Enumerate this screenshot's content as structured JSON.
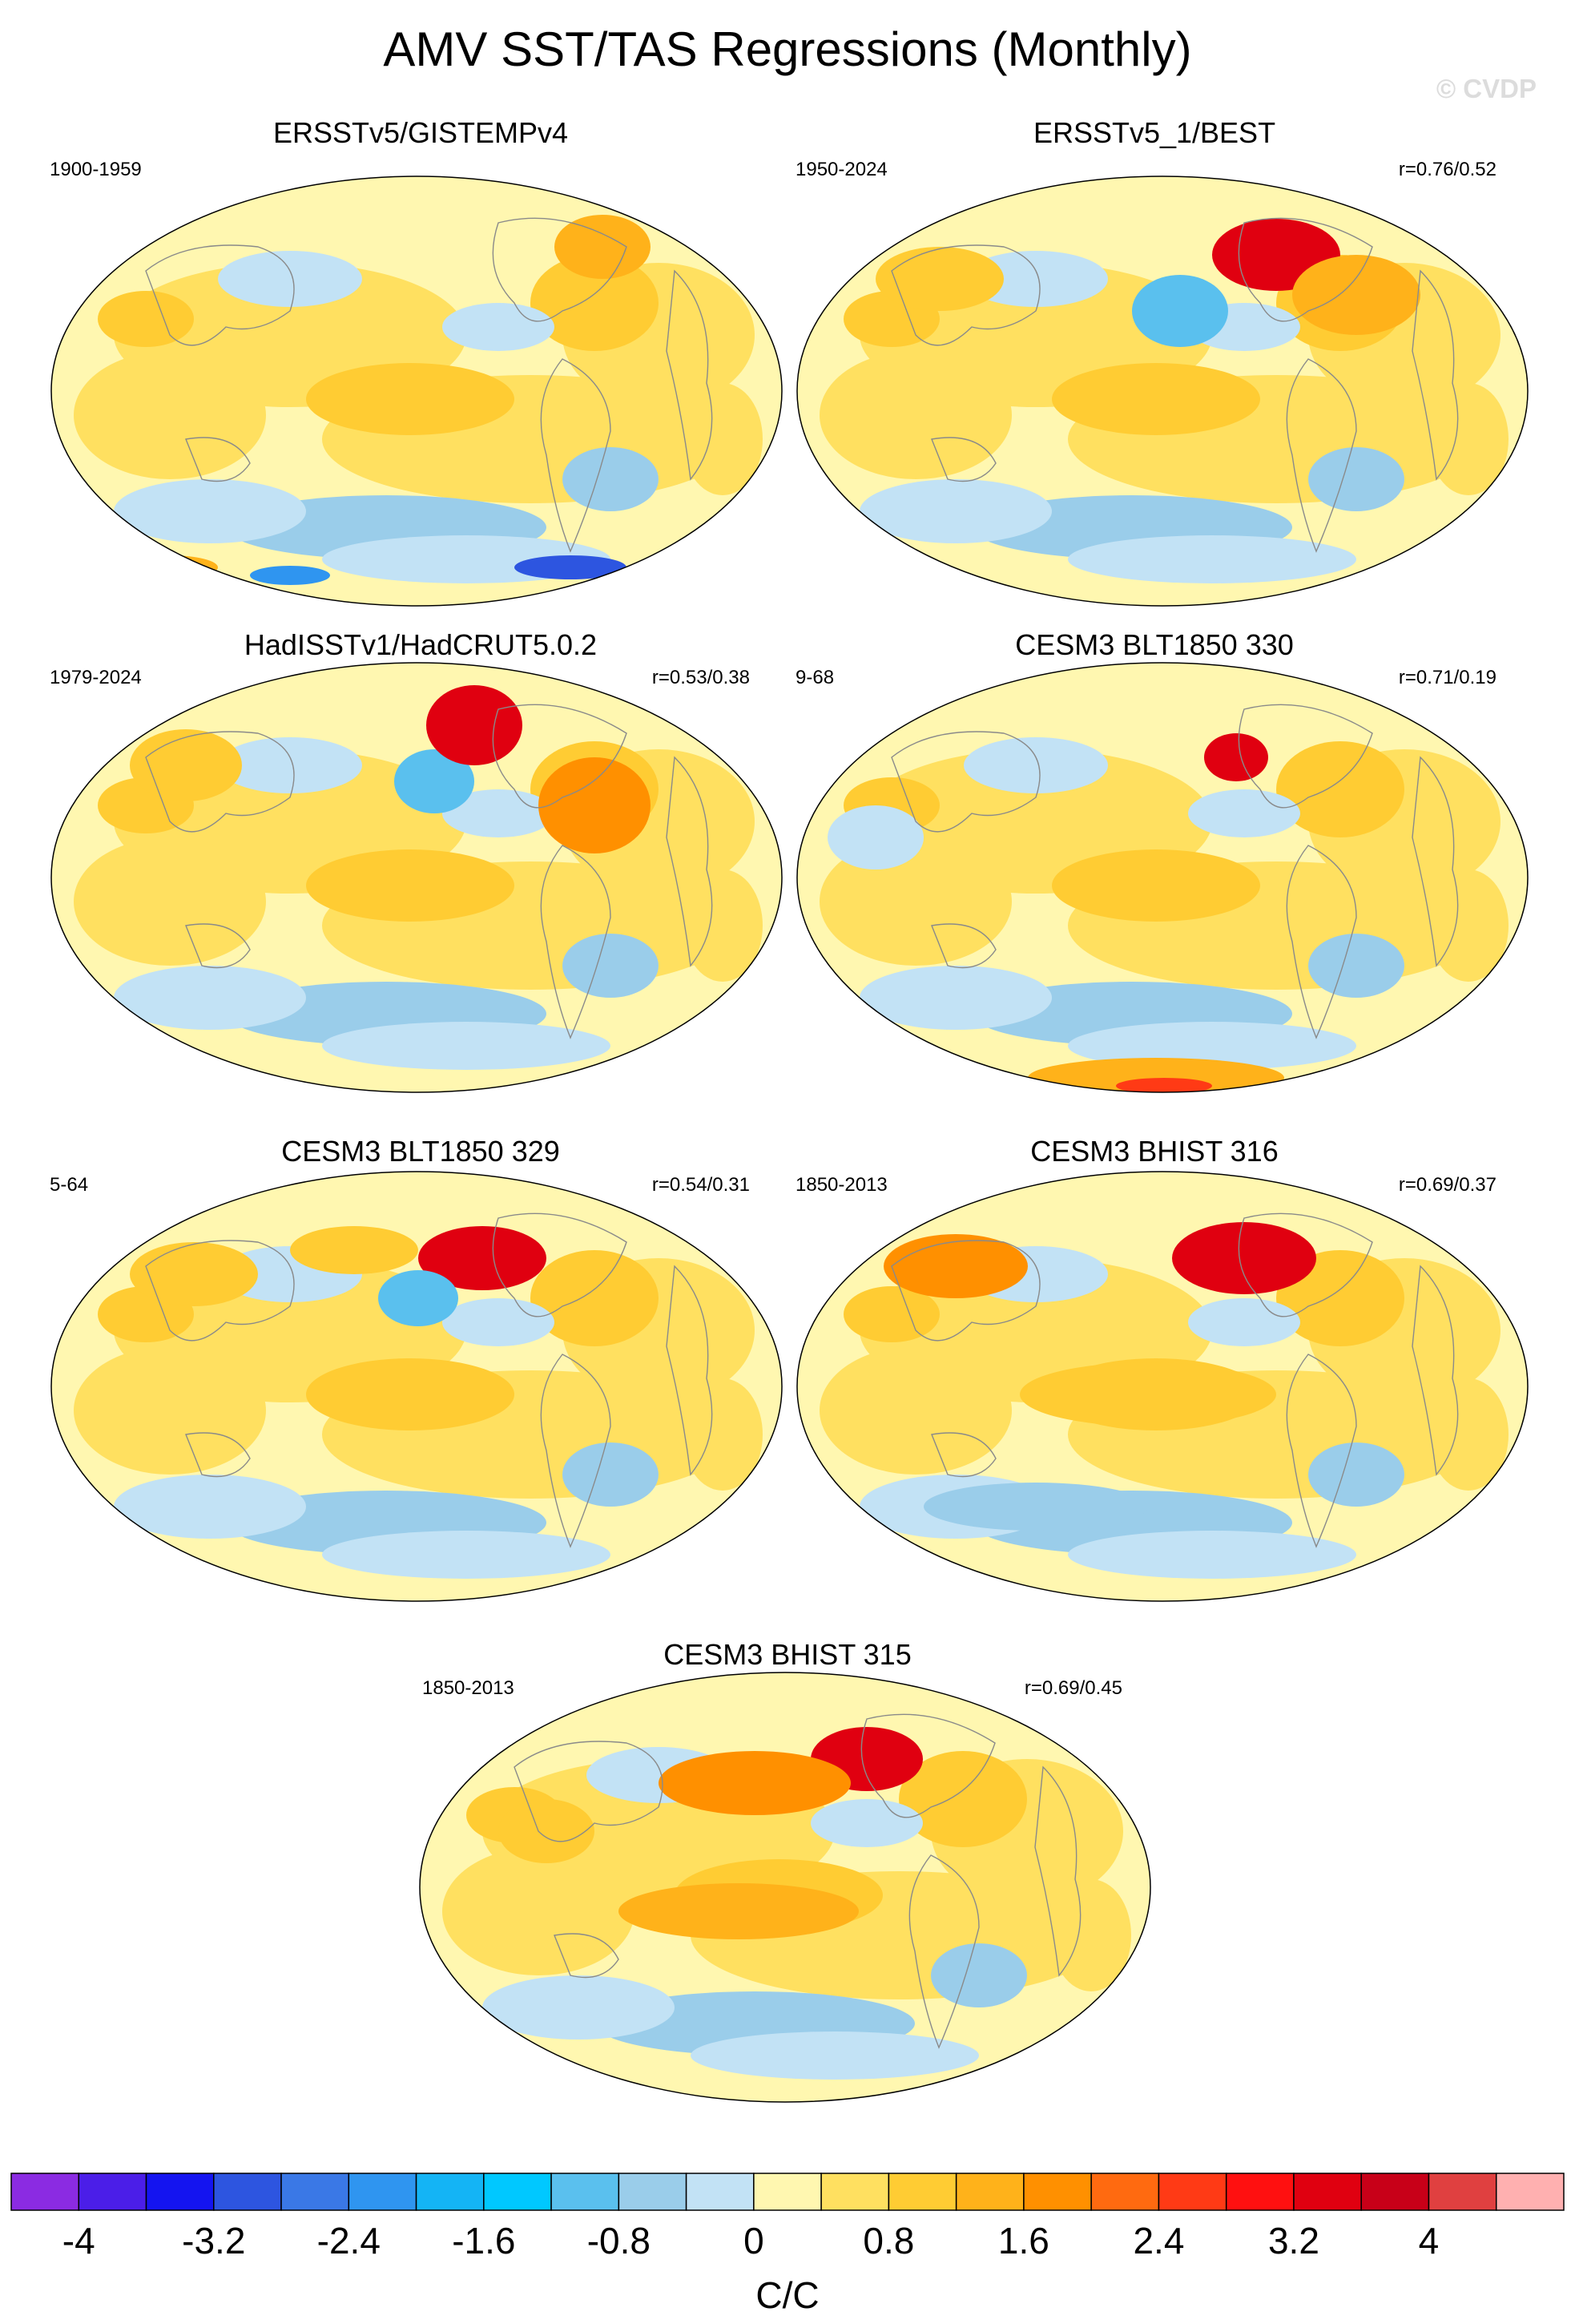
{
  "title": "AMV SST/TAS Regressions (Monthly)",
  "watermark": "© CVDP",
  "panels": [
    {
      "title": "ERSSTv5/GISTEMPv4",
      "left_label": "1900-1959",
      "right_label": ""
    },
    {
      "title": "ERSSTv5_1/BEST",
      "left_label": "1950-2024",
      "right_label": "r=0.76/0.52"
    },
    {
      "title": "HadISSTv1/HadCRUT5.0.2",
      "left_label": "1979-2024",
      "right_label": "r=0.53/0.38"
    },
    {
      "title": "CESM3 BLT1850 330",
      "left_label": "9-68",
      "right_label": "r=0.71/0.19"
    },
    {
      "title": "CESM3 BLT1850 329",
      "left_label": "5-64",
      "right_label": "r=0.54/0.31"
    },
    {
      "title": "CESM3 BHIST 316",
      "left_label": "1850-2013",
      "right_label": "r=0.69/0.37"
    },
    {
      "title": "CESM3 BHIST 315",
      "left_label": "1850-2013",
      "right_label": "r=0.69/0.45"
    }
  ],
  "colorbar": {
    "units": "C/C",
    "tick_labels": [
      "-4",
      "-3.2",
      "-2.4",
      "-1.6",
      "-0.8",
      "0",
      "0.8",
      "1.6",
      "2.4",
      "3.2",
      "4"
    ],
    "colors": [
      "#8b2be2",
      "#4b1ee8",
      "#1414f0",
      "#2d55e0",
      "#3a78e6",
      "#2f95f0",
      "#14b4f5",
      "#00c8ff",
      "#5ac0ee",
      "#9acdea",
      "#c2e2f5",
      "#fff7b0",
      "#ffe060",
      "#ffcc33",
      "#ffb21a",
      "#ff9000",
      "#ff6a10",
      "#ff3a15",
      "#ff1010",
      "#e00010",
      "#c80018",
      "#e04040",
      "#ffb0b0"
    ]
  }
}
